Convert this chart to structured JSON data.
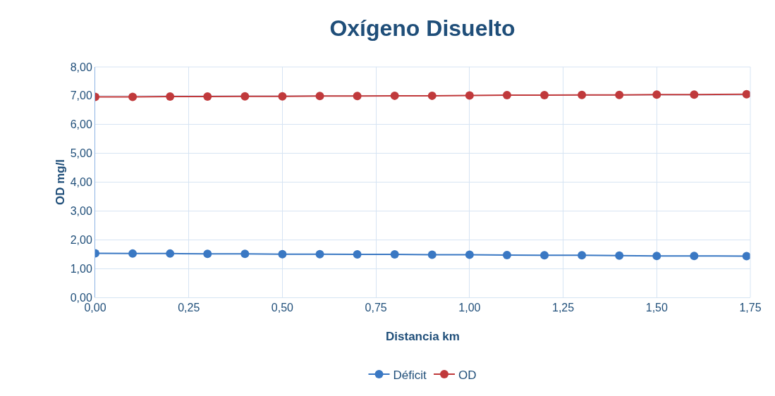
{
  "chart_data": {
    "type": "line",
    "title": "Oxígeno Disuelto",
    "xlabel": "Distancia km",
    "ylabel": "OD mg/l",
    "x": [
      0,
      0.1,
      0.2,
      0.3,
      0.4,
      0.5,
      0.6,
      0.7,
      0.8,
      0.9,
      1.0,
      1.1,
      1.2,
      1.3,
      1.4,
      1.5,
      1.6,
      1.74
    ],
    "series": [
      {
        "name": "Déficit",
        "color": "#3a78c3",
        "values": [
          1.53,
          1.52,
          1.52,
          1.51,
          1.51,
          1.5,
          1.5,
          1.49,
          1.49,
          1.48,
          1.48,
          1.47,
          1.46,
          1.46,
          1.45,
          1.44,
          1.44,
          1.43
        ]
      },
      {
        "name": "OD",
        "color": "#c0393b",
        "values": [
          6.96,
          6.96,
          6.97,
          6.97,
          6.98,
          6.98,
          6.99,
          6.99,
          7.0,
          7.0,
          7.01,
          7.02,
          7.02,
          7.03,
          7.03,
          7.04,
          7.04,
          7.05
        ]
      }
    ],
    "xlim": [
      0,
      1.75
    ],
    "ylim": [
      0,
      8
    ],
    "xticks": [
      {
        "value": 0,
        "label": "0,00"
      },
      {
        "value": 0.25,
        "label": "0,25"
      },
      {
        "value": 0.5,
        "label": "0,50"
      },
      {
        "value": 0.75,
        "label": "0,75"
      },
      {
        "value": 1,
        "label": "1,00"
      },
      {
        "value": 1.25,
        "label": "1,25"
      },
      {
        "value": 1.5,
        "label": "1,50"
      },
      {
        "value": 1.75,
        "label": "1,75"
      }
    ],
    "yticks": [
      {
        "value": 0,
        "label": "0,00"
      },
      {
        "value": 1,
        "label": "1,00"
      },
      {
        "value": 2,
        "label": "2,00"
      },
      {
        "value": 3,
        "label": "3,00"
      },
      {
        "value": 4,
        "label": "4,00"
      },
      {
        "value": 5,
        "label": "5,00"
      },
      {
        "value": 6,
        "label": "6,00"
      },
      {
        "value": 7,
        "label": "7,00"
      },
      {
        "value": 8,
        "label": "8,00"
      }
    ],
    "grid": true,
    "legend": "bottom",
    "marker": "circle",
    "line_style": "solid"
  }
}
